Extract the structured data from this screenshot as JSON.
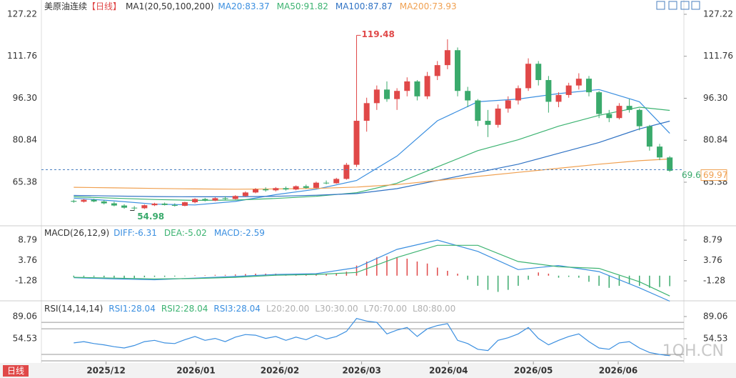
{
  "chart_data": [
    {
      "type": "candlestick",
      "title": "美原油连续",
      "period": "【日线】",
      "indicator": "MA1(20,50,100,200)",
      "up_color": "#e04848",
      "down_color": "#3aaa6c",
      "ohlc": [
        [
          58.5,
          59,
          57.8,
          58.2
        ],
        [
          58.2,
          59.2,
          57.9,
          58.9
        ],
        [
          58.9,
          59.3,
          58,
          58.3
        ],
        [
          58.3,
          58.8,
          57.2,
          57.6
        ],
        [
          57.6,
          58.2,
          56.5,
          56.8
        ],
        [
          56.8,
          57.3,
          55.6,
          56
        ],
        [
          56,
          56.6,
          54.98,
          55.8
        ],
        [
          55.8,
          57.2,
          55.5,
          56.9
        ],
        [
          56.9,
          57.8,
          56.6,
          57.5
        ],
        [
          57.5,
          57.9,
          56.8,
          57
        ],
        [
          57,
          57.6,
          56.4,
          56.7
        ],
        [
          56.7,
          58.2,
          56.5,
          58
        ],
        [
          58,
          59.5,
          57.6,
          59.2
        ],
        [
          59.2,
          59.6,
          58.3,
          58.6
        ],
        [
          58.6,
          59.8,
          58.4,
          59.5
        ],
        [
          59.5,
          60.2,
          58.9,
          59.2
        ],
        [
          59.2,
          60.6,
          59,
          60.3
        ],
        [
          60.3,
          62,
          60,
          61.6
        ],
        [
          61.6,
          63.2,
          61.3,
          62.8
        ],
        [
          62.8,
          63.5,
          61.9,
          62.4
        ],
        [
          62.4,
          63.6,
          62,
          63.2
        ],
        [
          63.2,
          63.8,
          62.3,
          62.7
        ],
        [
          62.7,
          64.2,
          62.4,
          63.9
        ],
        [
          63.9,
          64.5,
          62.9,
          63.3
        ],
        [
          63.3,
          65.6,
          63.1,
          65.2
        ],
        [
          65.2,
          66,
          64.6,
          65
        ],
        [
          65,
          67,
          64.8,
          66.6
        ],
        [
          66.6,
          72.5,
          66.3,
          71.8
        ],
        [
          71.8,
          119.48,
          71,
          88
        ],
        [
          88,
          96.5,
          84,
          94.5
        ],
        [
          94.5,
          101,
          92,
          99.5
        ],
        [
          99.5,
          102.5,
          95,
          96
        ],
        [
          96,
          100,
          92,
          99
        ],
        [
          99,
          104,
          97,
          102.5
        ],
        [
          102.5,
          103,
          95.5,
          97
        ],
        [
          97,
          106,
          96,
          104.5
        ],
        [
          104.5,
          110,
          103,
          108.5
        ],
        [
          108.5,
          118,
          107,
          114
        ],
        [
          114,
          115,
          97,
          99
        ],
        [
          99,
          100.5,
          93,
          95.5
        ],
        [
          95.5,
          96,
          86,
          88
        ],
        [
          88,
          92,
          82,
          86.5
        ],
        [
          86.5,
          94,
          85.5,
          92.5
        ],
        [
          92.5,
          97,
          91,
          95.5
        ],
        [
          95.5,
          101,
          94,
          100
        ],
        [
          100,
          111,
          99,
          109
        ],
        [
          109,
          110,
          101,
          103
        ],
        [
          103,
          104.5,
          91,
          95
        ],
        [
          95,
          98.5,
          93,
          97.5
        ],
        [
          97.5,
          102,
          96.5,
          101
        ],
        [
          101,
          105.5,
          99.5,
          103.5
        ],
        [
          103.5,
          104.5,
          97,
          98.5
        ],
        [
          98.5,
          99,
          89,
          90.5
        ],
        [
          90.5,
          92,
          87.5,
          89
        ],
        [
          89,
          94.5,
          88.5,
          93.5
        ],
        [
          93.5,
          96,
          91,
          92
        ],
        [
          92,
          92.5,
          84.5,
          86
        ],
        [
          86,
          86.5,
          77,
          78.5
        ],
        [
          78.5,
          79.5,
          73.5,
          74.5
        ],
        [
          74.5,
          75,
          69.2,
          69.61
        ]
      ],
      "xlim": [
        -3.2,
        60.4
      ],
      "xticks": [
        {
          "value": 3.2,
          "label": "2025/12"
        },
        {
          "value": 12.1,
          "label": "2026/01"
        },
        {
          "value": 20.4,
          "label": "2026/02"
        },
        {
          "value": 28.5,
          "label": "2026/03"
        },
        {
          "value": 37.1,
          "label": "2026/04"
        },
        {
          "value": 45.5,
          "label": "2026/05"
        },
        {
          "value": 53.9,
          "label": "2026/06"
        }
      ],
      "ylim": [
        49.59,
        129.85
      ],
      "yticks": [
        127.22,
        111.76,
        {
          "value": 96.3,
          "label": "96.30"
        },
        80.84,
        65.38
      ],
      "ma_x": [
        0,
        4,
        8,
        12,
        16,
        20,
        24,
        28,
        32,
        36,
        40,
        44,
        48,
        52,
        56,
        59
      ],
      "series": [
        {
          "name": "MA20:83.37",
          "color": "#3b8fe0",
          "values": [
            59.5,
            58.5,
            57.3,
            57,
            58.3,
            60.8,
            62.8,
            66,
            75,
            88,
            95,
            96,
            98,
            99.5,
            95,
            83.37
          ]
        },
        {
          "name": "MA50:91.82",
          "color": "#3cb371",
          "values": [
            60,
            59.5,
            59,
            58.7,
            58.8,
            59.4,
            60.2,
            61.5,
            65,
            71,
            77,
            81,
            86,
            90,
            93,
            91.82
          ]
        },
        {
          "name": "MA100:87.87",
          "color": "#2f72c4",
          "values": [
            60.5,
            60.3,
            60.1,
            60,
            60,
            60.2,
            60.6,
            61.2,
            63,
            66,
            69,
            72,
            76,
            80,
            85,
            87.87
          ]
        },
        {
          "name": "MA200:73.93",
          "color": "#f0a050",
          "values": [
            63.5,
            63.3,
            63.1,
            62.9,
            62.8,
            62.9,
            63.1,
            63.6,
            64.5,
            66,
            67.5,
            69,
            70.5,
            72,
            73.3,
            73.93
          ]
        }
      ],
      "high": 119.48,
      "high_index": 28,
      "low": 54.98,
      "low_index": 6,
      "last": 69.61,
      "current": 69.97
    },
    {
      "type": "macd",
      "title": "MACD(26,12,9)",
      "histogram": [
        -0.3,
        -0.3,
        -0.3,
        -0.4,
        -0.5,
        -0.6,
        -0.6,
        -0.4,
        -0.3,
        -0.3,
        -0.2,
        -0.1,
        0.1,
        0.1,
        0.2,
        0.2,
        0.3,
        0.4,
        0.5,
        0.5,
        0.5,
        0.4,
        0.4,
        0.4,
        0.5,
        0.4,
        0.5,
        1,
        2.5,
        3.5,
        4.5,
        4.8,
        4.5,
        4.2,
        3.5,
        3,
        2,
        1.2,
        0.5,
        -1,
        -2.5,
        -3.5,
        -4,
        -3.5,
        -2.5,
        -1,
        0.8,
        0.5,
        -0.5,
        -0.3,
        -0.5,
        -1.5,
        -2.5,
        -3,
        -2.5,
        -2,
        -2.5,
        -3,
        -2.8,
        -2.59
      ],
      "x": [
        0,
        4,
        8,
        12,
        16,
        20,
        24,
        28,
        32,
        36,
        40,
        44,
        48,
        52,
        56,
        59
      ],
      "series": [
        {
          "name": "DIFF:-6.31",
          "color": "#3b8fe0",
          "values": [
            -0.5,
            -0.8,
            -1,
            -0.6,
            -0.2,
            0.3,
            0.5,
            2,
            6.5,
            8.8,
            6,
            1.5,
            2.5,
            1,
            -3,
            -6.31
          ]
        },
        {
          "name": "DEA:-5.02",
          "color": "#3cb371",
          "values": [
            -0.4,
            -0.6,
            -0.8,
            -0.7,
            -0.4,
            0.1,
            0.3,
            0.8,
            4.5,
            7.5,
            7.5,
            3.5,
            2.2,
            1.8,
            -1.5,
            -5.02
          ]
        }
      ],
      "histogram_name": "MACD:-2.59",
      "ylim": [
        -6.39,
        11.97
      ],
      "yticks": [
        8.79,
        3.76,
        -1.28
      ]
    },
    {
      "type": "rsi",
      "title": "RSI(14,14,14)",
      "legend": [
        {
          "name": "RSI1:28.04",
          "color": "#3b8fe0"
        },
        {
          "name": "RSI2:28.04",
          "color": "#3cb371"
        },
        {
          "name": "RSI3:28.04",
          "color": "#3b8fe0"
        },
        {
          "name": "L20:20.00",
          "color": "#b0b0b0"
        },
        {
          "name": "L30:30.00",
          "color": "#b0b0b0"
        },
        {
          "name": "L70:70.00",
          "color": "#b0b0b0"
        },
        {
          "name": "L80:80.00",
          "color": "#b0b0b0"
        }
      ],
      "levels": [
        20,
        30,
        70,
        80
      ],
      "values": [
        48,
        50,
        47,
        45,
        42,
        40,
        44,
        50,
        52,
        48,
        47,
        53,
        58,
        52,
        55,
        50,
        57,
        61,
        60,
        55,
        58,
        52,
        57,
        53,
        60,
        54,
        58,
        66,
        86,
        82,
        80,
        62,
        68,
        72,
        58,
        70,
        75,
        78,
        52,
        47,
        38,
        36,
        52,
        56,
        62,
        72,
        55,
        45,
        52,
        58,
        62,
        50,
        40,
        38,
        48,
        50,
        40,
        33,
        30,
        28.04
      ],
      "color": "#3b8fe0",
      "ylim": [
        18.9,
        112.4
      ],
      "yticks": [
        89.06,
        54.53
      ]
    }
  ],
  "footer": {
    "period": "日线",
    "watermark": "1QH.CN"
  }
}
